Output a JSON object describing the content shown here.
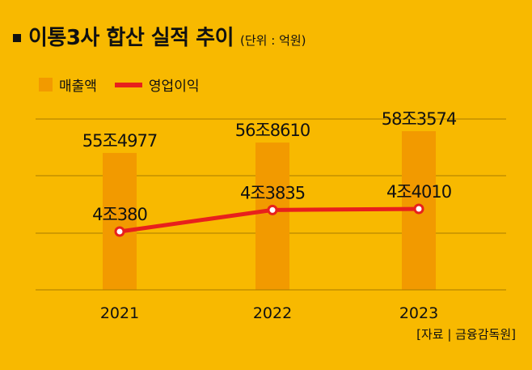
{
  "header": {
    "title": "이통3사 합산 실적 추이",
    "unit": "(단위 : 억원)"
  },
  "legend": {
    "bar_label": "매출액",
    "line_label": "영업이익"
  },
  "chart_data": {
    "type": "bar",
    "title": "이통3사 합산 실적 추이",
    "unit": "억원",
    "categories": [
      "2021",
      "2022",
      "2023"
    ],
    "series": [
      {
        "name": "매출액",
        "type": "bar",
        "values": [
          554977,
          568610,
          583574
        ],
        "labels": [
          "55조4977",
          "56조8610",
          "58조3574"
        ],
        "color": "#f29a00"
      },
      {
        "name": "영업이익",
        "type": "line",
        "values": [
          40380,
          43835,
          44010
        ],
        "labels": [
          "4조380",
          "4조3835",
          "4조4010"
        ],
        "color": "#e8201c"
      }
    ],
    "grid": true,
    "legend_position": "top-left"
  },
  "footer": {
    "source": "[자료 | 금융감독원]"
  },
  "colors": {
    "background": "#f8b900",
    "bar": "#f29a00",
    "line": "#e8201c",
    "grid": "#a87c00"
  }
}
